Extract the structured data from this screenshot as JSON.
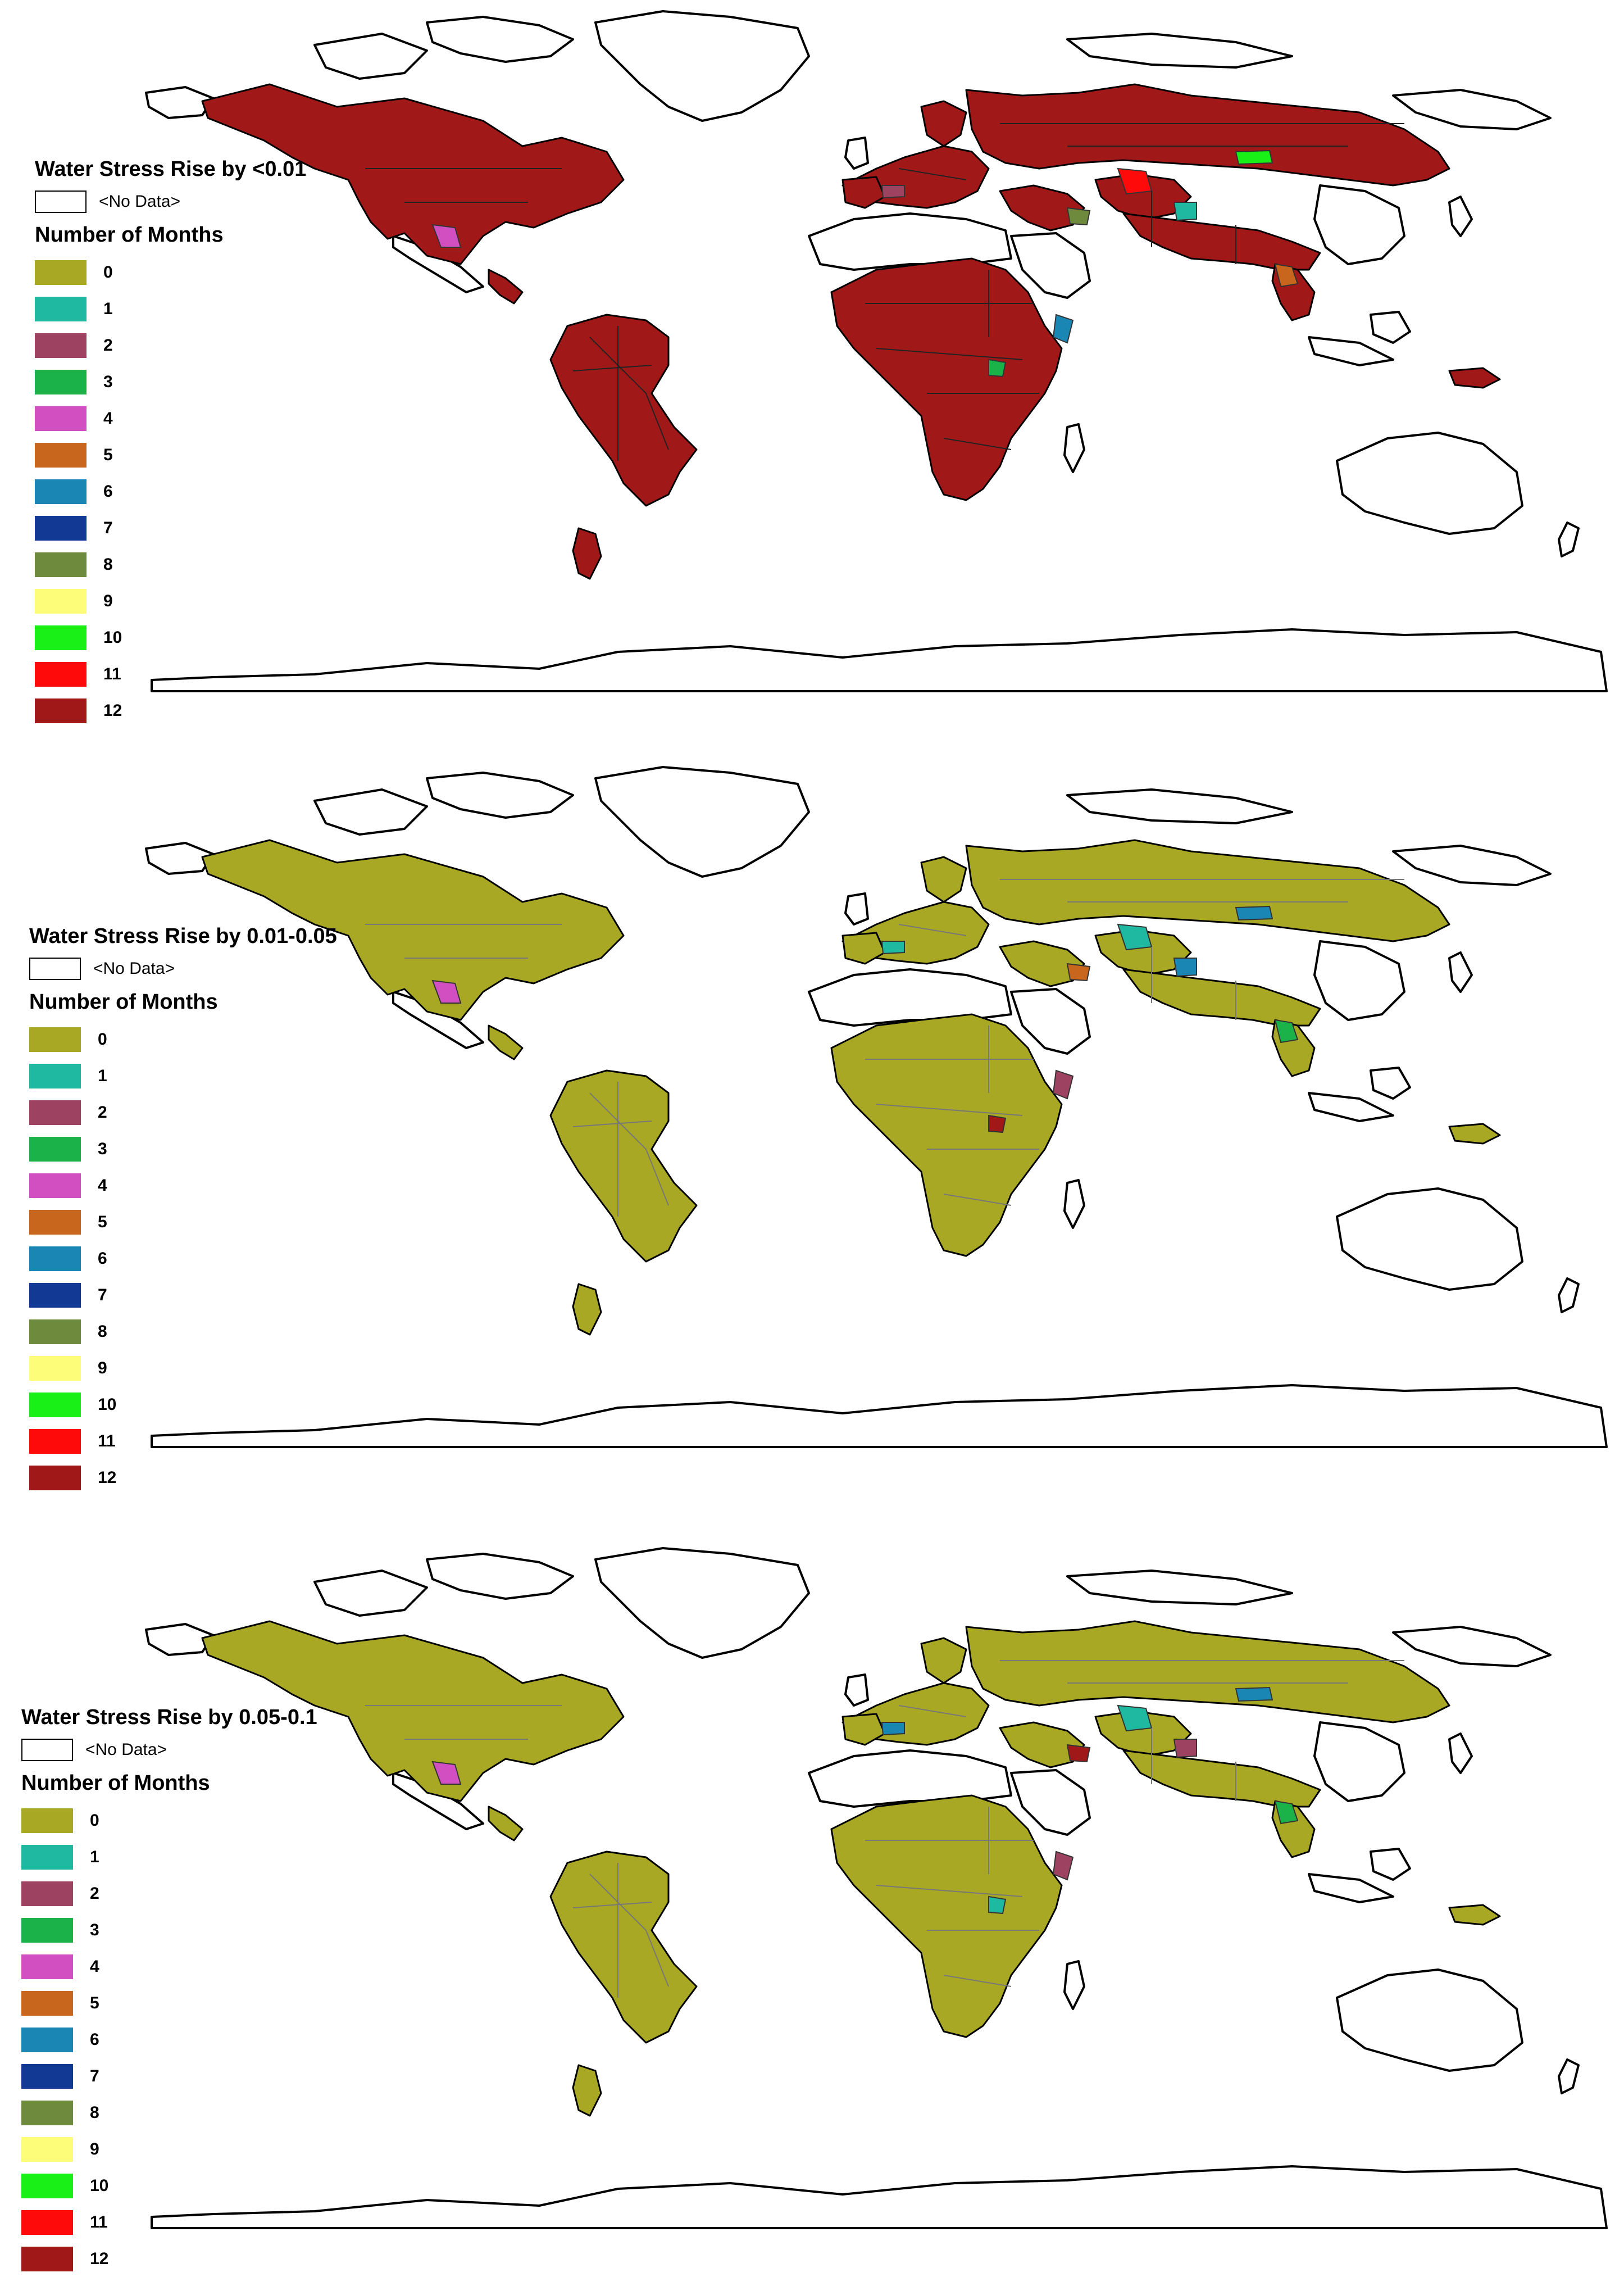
{
  "colors": {
    "0": "#a8a825",
    "1": "#1fb8a0",
    "2": "#9e4262",
    "3": "#1cb24a",
    "4": "#d24fc2",
    "5": "#c8661e",
    "6": "#1a86b4",
    "7": "#123a94",
    "8": "#6e8a3c",
    "9": "#fdfd7a",
    "10": "#18f018",
    "11": "#ff0a0a",
    "12": "#a01818",
    "outline": "#000000",
    "border": "#777777"
  },
  "legend_common": {
    "no_data_label": "<No Data>",
    "months_title": "Number of Months",
    "items": [
      "0",
      "1",
      "2",
      "3",
      "4",
      "5",
      "6",
      "7",
      "8",
      "9",
      "10",
      "11",
      "12"
    ]
  },
  "panels": [
    {
      "title": "Water Stress Rise by <0.01",
      "fill_class": "12",
      "accents": [
        "11",
        "10",
        "6",
        "4",
        "5",
        "8",
        "3",
        "2",
        "1"
      ]
    },
    {
      "title": "Water Stress Rise by 0.01-0.05",
      "fill_class": "0",
      "accents": [
        "1",
        "6",
        "2",
        "4",
        "3",
        "5",
        "12"
      ]
    },
    {
      "title": "Water Stress Rise by 0.05-0.1",
      "fill_class": "0",
      "accents": [
        "1",
        "6",
        "2",
        "4",
        "3",
        "12"
      ]
    }
  ]
}
